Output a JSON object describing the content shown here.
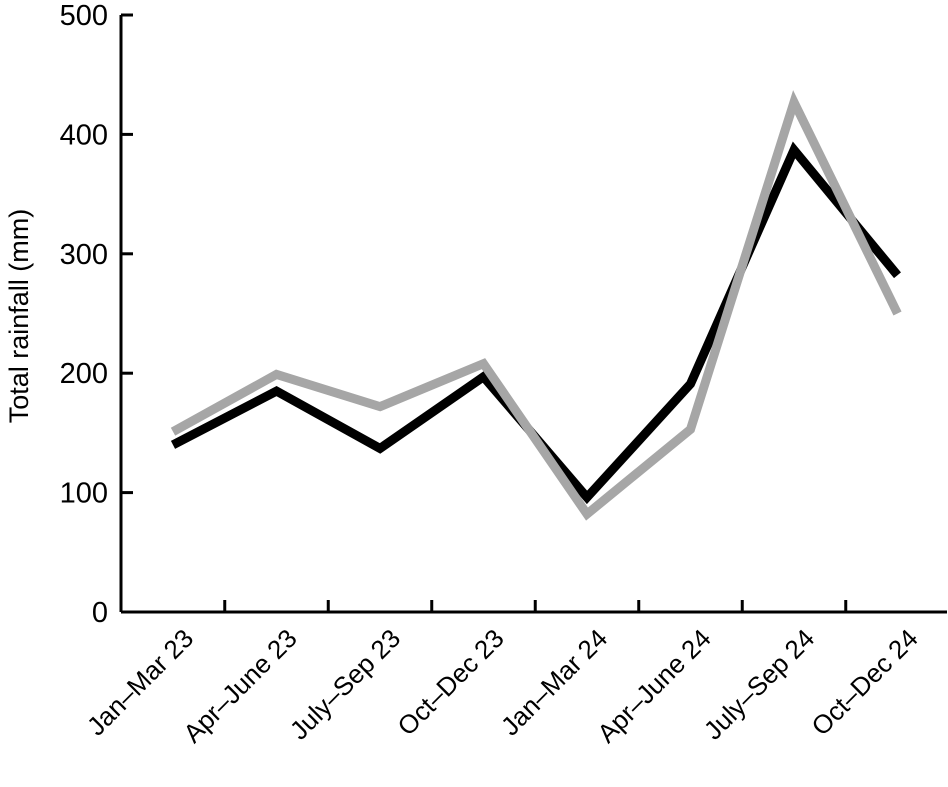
{
  "chart_data": {
    "type": "line",
    "ylabel": "Total rainfall (mm)",
    "xlabel": "",
    "categories": [
      "Jan–Mar 23",
      "Apr–June 23",
      "July–Sep 23",
      "Oct–Dec 23",
      "Jan–Mar 24",
      "Apr–June 24",
      "July–Sep 24",
      "Oct–Dec 24"
    ],
    "yticks": [
      "0",
      "100",
      "200",
      "300",
      "400",
      "500"
    ],
    "ylim": [
      0,
      500
    ],
    "grid": false,
    "series": [
      {
        "color": "#000000",
        "values": [
          140,
          185,
          137,
          197,
          96,
          191,
          387,
          282
        ]
      },
      {
        "color": "#a6a6a6",
        "values": [
          151,
          199,
          172,
          208,
          82,
          153,
          427,
          250
        ]
      }
    ]
  }
}
